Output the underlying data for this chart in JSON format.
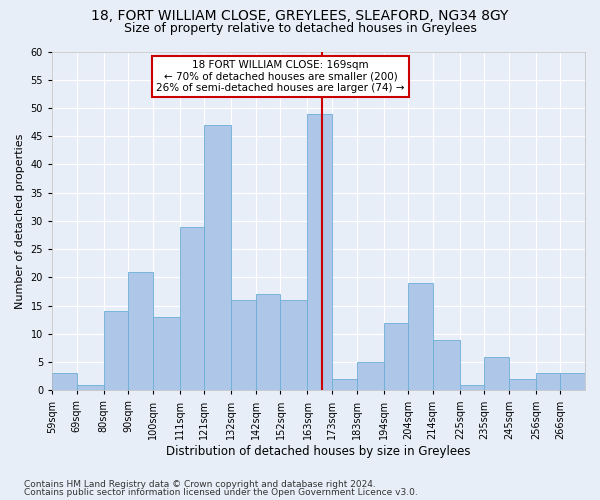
{
  "title1": "18, FORT WILLIAM CLOSE, GREYLEES, SLEAFORD, NG34 8GY",
  "title2": "Size of property relative to detached houses in Greylees",
  "xlabel": "Distribution of detached houses by size in Greylees",
  "ylabel": "Number of detached properties",
  "footer1": "Contains HM Land Registry data © Crown copyright and database right 2024.",
  "footer2": "Contains public sector information licensed under the Open Government Licence v3.0.",
  "bin_labels": [
    "59sqm",
    "69sqm",
    "80sqm",
    "90sqm",
    "100sqm",
    "111sqm",
    "121sqm",
    "132sqm",
    "142sqm",
    "152sqm",
    "163sqm",
    "173sqm",
    "183sqm",
    "194sqm",
    "204sqm",
    "214sqm",
    "225sqm",
    "235sqm",
    "245sqm",
    "256sqm",
    "266sqm"
  ],
  "bar_values": [
    3,
    1,
    14,
    21,
    13,
    29,
    47,
    16,
    17,
    16,
    49,
    2,
    5,
    12,
    19,
    9,
    1,
    6,
    2,
    3,
    3
  ],
  "bar_color": "#aec6e8",
  "bar_edge_color": "#6baed6",
  "bin_edges": [
    59,
    69,
    80,
    90,
    100,
    111,
    121,
    132,
    142,
    152,
    163,
    173,
    183,
    194,
    204,
    214,
    225,
    235,
    245,
    256,
    266,
    276
  ],
  "vline_color": "#cc0000",
  "vline_x": 169,
  "annotation_text": "18 FORT WILLIAM CLOSE: 169sqm\n← 70% of detached houses are smaller (200)\n26% of semi-detached houses are larger (74) →",
  "annotation_box_color": "#cc0000",
  "ylim": [
    0,
    60
  ],
  "yticks": [
    0,
    5,
    10,
    15,
    20,
    25,
    30,
    35,
    40,
    45,
    50,
    55,
    60
  ],
  "background_color": "#e8eef8",
  "grid_color": "#ffffff",
  "title_fontsize": 10,
  "subtitle_fontsize": 9,
  "ylabel_fontsize": 8,
  "xlabel_fontsize": 8.5,
  "tick_fontsize": 7,
  "footer_fontsize": 6.5,
  "ann_fontsize": 7.5
}
